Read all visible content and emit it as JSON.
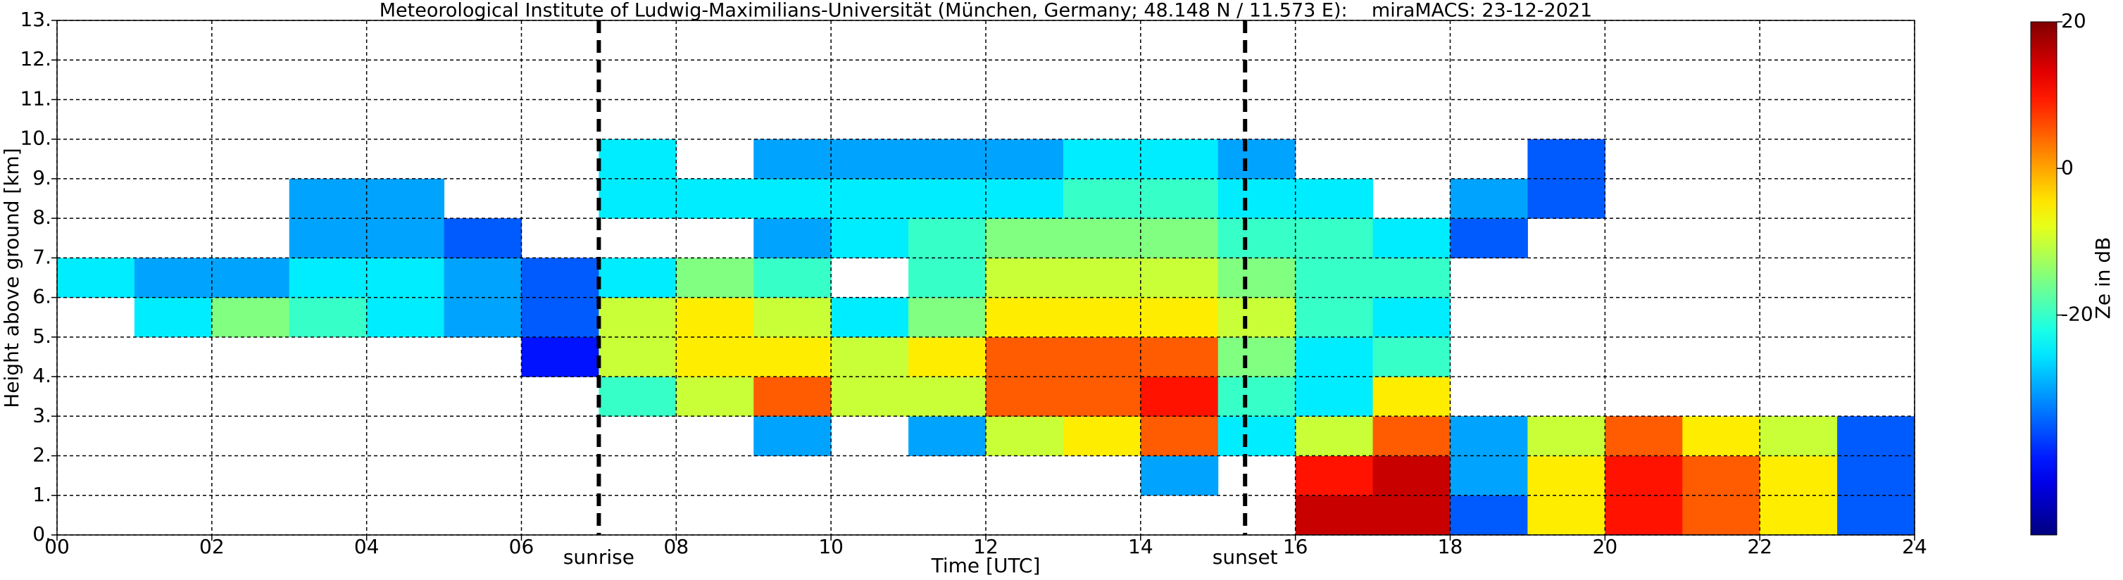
{
  "chart_data": {
    "type": "heatmap",
    "title": "Meteorological Institute of Ludwig-Maximilians-Universität (München, Germany; 48.148 N / 11.573 E):    miraMACS: 23-12-2021",
    "x_label": "Time [UTC]",
    "y_label": "Height above ground [km]",
    "colorbar_label": "Ze in dB",
    "colormap": "jet",
    "clim": [
      -50,
      20
    ],
    "cticks": [
      20,
      0,
      -20
    ],
    "xlim": [
      0,
      24
    ],
    "ylim": [
      0,
      13
    ],
    "xticks": [
      {
        "value": 0,
        "label": "00"
      },
      {
        "value": 2,
        "label": "02"
      },
      {
        "value": 4,
        "label": "04"
      },
      {
        "value": 6,
        "label": "06"
      },
      {
        "value": 8,
        "label": "08"
      },
      {
        "value": 10,
        "label": "10"
      },
      {
        "value": 12,
        "label": "12"
      },
      {
        "value": 14,
        "label": "14"
      },
      {
        "value": 16,
        "label": "16"
      },
      {
        "value": 18,
        "label": "18"
      },
      {
        "value": 20,
        "label": "20"
      },
      {
        "value": 22,
        "label": "22"
      },
      {
        "value": 24,
        "label": "24"
      }
    ],
    "yticks": [
      {
        "value": 0,
        "label": "0."
      },
      {
        "value": 1,
        "label": "1."
      },
      {
        "value": 2,
        "label": "2."
      },
      {
        "value": 3,
        "label": "3."
      },
      {
        "value": 4,
        "label": "4."
      },
      {
        "value": 5,
        "label": "5."
      },
      {
        "value": 6,
        "label": "6."
      },
      {
        "value": 7,
        "label": "7."
      },
      {
        "value": 8,
        "label": "8."
      },
      {
        "value": 9,
        "label": "9."
      },
      {
        "value": 10,
        "label": "10."
      },
      {
        "value": 11,
        "label": "11."
      },
      {
        "value": 12,
        "label": "12."
      },
      {
        "value": 13,
        "label": "13."
      }
    ],
    "grid": true,
    "vlines": [
      {
        "x": 7.0,
        "label": "sunrise"
      },
      {
        "x": 15.35,
        "label": "sunset"
      }
    ],
    "x_bins": [
      0,
      1,
      2,
      3,
      4,
      5,
      6,
      7,
      8,
      9,
      10,
      11,
      12,
      13,
      14,
      15,
      16,
      17,
      18,
      19,
      20,
      21,
      22,
      23,
      24
    ],
    "y_bins": [
      0,
      1,
      2,
      3,
      4,
      5,
      6,
      7,
      8,
      9,
      10
    ],
    "z": [
      [
        null,
        null,
        null,
        null,
        null,
        null,
        null,
        null,
        null,
        null,
        null,
        null,
        null,
        null,
        null,
        null,
        15,
        15,
        -35,
        -5,
        10,
        5,
        -5,
        -35
      ],
      [
        null,
        null,
        null,
        null,
        null,
        null,
        null,
        null,
        null,
        null,
        null,
        null,
        null,
        null,
        -30,
        null,
        10,
        15,
        -30,
        -5,
        10,
        5,
        -5,
        -35
      ],
      [
        null,
        null,
        null,
        null,
        null,
        null,
        null,
        null,
        null,
        -30,
        null,
        -30,
        -10,
        -5,
        5,
        -25,
        -10,
        5,
        -30,
        -10,
        5,
        -5,
        -10,
        -35
      ],
      [
        null,
        null,
        null,
        null,
        null,
        null,
        null,
        -20,
        -10,
        5,
        -10,
        -10,
        5,
        5,
        10,
        -20,
        -25,
        -5,
        null,
        null,
        null,
        null,
        null,
        null
      ],
      [
        null,
        null,
        null,
        null,
        null,
        null,
        -40,
        -10,
        -5,
        -5,
        -10,
        -5,
        5,
        5,
        5,
        -15,
        -25,
        -20,
        null,
        null,
        null,
        null,
        null,
        null
      ],
      [
        null,
        -25,
        -15,
        -20,
        -25,
        -30,
        -35,
        -10,
        -5,
        -10,
        -25,
        -15,
        -5,
        -5,
        -5,
        -10,
        -20,
        -25,
        null,
        null,
        null,
        null,
        null,
        null
      ],
      [
        -25,
        -30,
        -30,
        -25,
        -25,
        -30,
        -35,
        -25,
        -15,
        -20,
        null,
        -20,
        -10,
        -10,
        -10,
        -15,
        -20,
        -20,
        null,
        null,
        null,
        null,
        null,
        null
      ],
      [
        null,
        null,
        null,
        -30,
        -30,
        -35,
        null,
        null,
        null,
        -30,
        -25,
        -20,
        -15,
        -15,
        -15,
        -20,
        -20,
        -25,
        -35,
        null,
        null,
        null,
        null,
        null
      ],
      [
        null,
        null,
        null,
        -30,
        -30,
        null,
        null,
        -25,
        -25,
        -25,
        -25,
        -25,
        -25,
        -20,
        -20,
        -25,
        -25,
        null,
        -30,
        -35,
        null,
        null,
        null,
        null
      ],
      [
        null,
        null,
        null,
        null,
        null,
        null,
        null,
        -25,
        null,
        -30,
        -30,
        -30,
        -30,
        -25,
        -25,
        -30,
        null,
        null,
        null,
        -35,
        null,
        null,
        null,
        null
      ]
    ]
  }
}
